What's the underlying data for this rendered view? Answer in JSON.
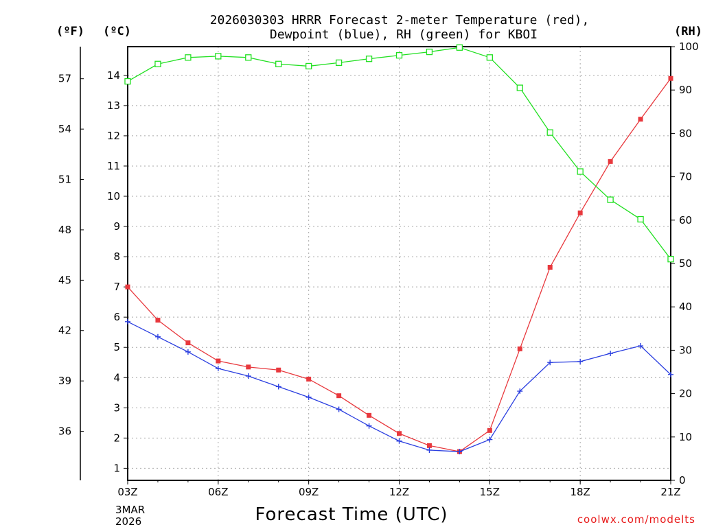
{
  "chart_data": {
    "type": "line",
    "title_line1": "2026030303 HRRR Forecast 2-meter Temperature (red),",
    "title_line2": "Dewpoint (blue), RH (green) for KBOI",
    "xlabel": "Forecast Time (UTC)",
    "date_label_line1": "3MAR",
    "date_label_line2": "2026",
    "credit": "coolwx.com/modelts",
    "unit_f": "(ºF)",
    "unit_c": "(ºC)",
    "unit_rh": "(RH)",
    "hours": [
      3,
      4,
      5,
      6,
      7,
      8,
      9,
      10,
      11,
      12,
      13,
      14,
      15,
      16,
      17,
      18,
      19,
      20,
      21
    ],
    "x_range": [
      3,
      21
    ],
    "x_ticks": [
      {
        "value": 3,
        "label": "03Z"
      },
      {
        "value": 6,
        "label": "06Z"
      },
      {
        "value": 9,
        "label": "09Z"
      },
      {
        "value": 12,
        "label": "12Z"
      },
      {
        "value": 15,
        "label": "15Z"
      },
      {
        "value": 18,
        "label": "18Z"
      },
      {
        "value": 21,
        "label": "21Z"
      }
    ],
    "celsius_range": [
      0.6,
      14.95
    ],
    "celsius_ticks": [
      "1",
      "2",
      "3",
      "4",
      "5",
      "6",
      "7",
      "8",
      "9",
      "10",
      "11",
      "12",
      "13",
      "14"
    ],
    "fahrenheit_ticks": [
      "36",
      "39",
      "42",
      "45",
      "48",
      "51",
      "54",
      "57"
    ],
    "rh_range": [
      0,
      100
    ],
    "rh_ticks": [
      "0",
      "10",
      "20",
      "30",
      "40",
      "50",
      "60",
      "70",
      "80",
      "90",
      "100"
    ],
    "series": [
      {
        "name": "Temperature",
        "color": "#e8383d",
        "marker": "filled-square",
        "axis": "celsius",
        "values": [
          7.0,
          5.9,
          5.15,
          4.55,
          4.35,
          4.25,
          3.95,
          3.4,
          2.75,
          2.15,
          1.75,
          1.55,
          2.25,
          4.95,
          7.65,
          9.45,
          11.15,
          12.55,
          13.9
        ]
      },
      {
        "name": "Dewpoint",
        "color": "#2b3fe0",
        "marker": "plus",
        "axis": "celsius",
        "values": [
          5.85,
          5.35,
          4.85,
          4.3,
          4.05,
          3.7,
          3.35,
          2.95,
          2.4,
          1.9,
          1.6,
          1.55,
          1.95,
          3.55,
          4.5,
          4.53,
          4.8,
          5.05,
          4.1
        ]
      },
      {
        "name": "RH",
        "color": "#22e022",
        "marker": "open-square",
        "axis": "rh",
        "values": [
          92,
          96,
          97.5,
          97.8,
          97.5,
          96,
          95.5,
          96.3,
          97.2,
          98,
          98.8,
          99.8,
          97.5,
          90.5,
          80.2,
          71.2,
          64.7,
          60.2,
          51
        ]
      }
    ]
  }
}
